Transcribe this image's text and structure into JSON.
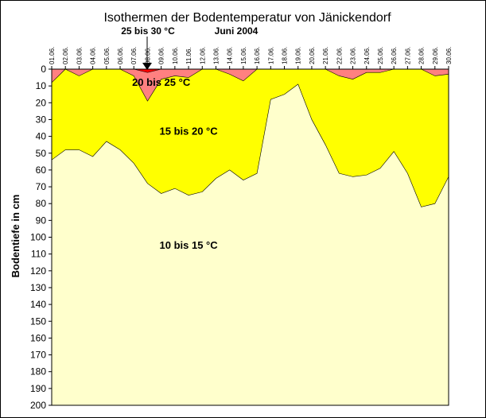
{
  "chart_data": {
    "type": "area",
    "title": "Isothermen der Bodentemperatur von Jänickendorf",
    "subtitle_left": "25 bis 30 °C",
    "subtitle_right": "Juni 2004",
    "ylabel": "Bodentiefe in cm",
    "ylim": [
      0,
      200
    ],
    "yticks": [
      0,
      10,
      20,
      30,
      40,
      50,
      60,
      70,
      80,
      90,
      100,
      110,
      120,
      130,
      140,
      150,
      160,
      170,
      180,
      190,
      200
    ],
    "y_inverted": true,
    "x": [
      "01.06.",
      "02.06.",
      "03.06.",
      "04.06.",
      "05.06.",
      "06.06.",
      "07.06.",
      "08.06.",
      "09.06.",
      "10.06.",
      "11.06.",
      "12.06.",
      "13.06.",
      "14.06.",
      "15.06.",
      "16.06.",
      "17.06.",
      "18.06.",
      "19.06.",
      "20.06.",
      "21.06.",
      "22.06.",
      "23.06.",
      "24.06.",
      "25.06.",
      "26.06.",
      "27.06.",
      "28.06.",
      "29.06.",
      "30.06."
    ],
    "series": [
      {
        "name": "25 bis 30 °C",
        "color": "#ff0000",
        "values": [
          0,
          0,
          0,
          0,
          0,
          0,
          0,
          2,
          0,
          0,
          0,
          0,
          0,
          0,
          0,
          0,
          0,
          0,
          0,
          0,
          0,
          0,
          0,
          0,
          0,
          0,
          0,
          0,
          0,
          0
        ]
      },
      {
        "name": "20 bis 25 °C",
        "color": "#ff8080",
        "values": [
          8,
          0,
          4,
          0,
          0,
          0,
          4,
          19,
          6,
          4,
          5,
          0,
          0,
          3,
          7,
          0,
          0,
          0,
          0,
          0,
          0,
          4,
          6,
          2,
          2,
          0,
          0,
          0,
          4,
          3
        ]
      },
      {
        "name": "15 bis 20 °C",
        "color": "#ffff00",
        "values": [
          54,
          48,
          48,
          52,
          43,
          48,
          56,
          68,
          74,
          71,
          75,
          73,
          65,
          60,
          66,
          62,
          18,
          15,
          9,
          30,
          45,
          62,
          64,
          63,
          59,
          49,
          62,
          82,
          80,
          64
        ]
      },
      {
        "name": "10 bis 15 °C",
        "color": "#ffffcc",
        "values": [
          200,
          200,
          200,
          200,
          200,
          200,
          200,
          200,
          200,
          200,
          200,
          200,
          200,
          200,
          200,
          200,
          200,
          200,
          200,
          200,
          200,
          200,
          200,
          200,
          200,
          200,
          200,
          200,
          200,
          200
        ]
      }
    ],
    "annotations": [
      {
        "text": "20 bis 25 °C",
        "x": "09.06.",
        "y": 8
      },
      {
        "text": "15 bis 20 °C",
        "x": "11.06.",
        "y": 37
      },
      {
        "text": "10 bis 15 °C",
        "x": "11.06.",
        "y": 105
      }
    ],
    "grid": false,
    "legend": "none"
  }
}
